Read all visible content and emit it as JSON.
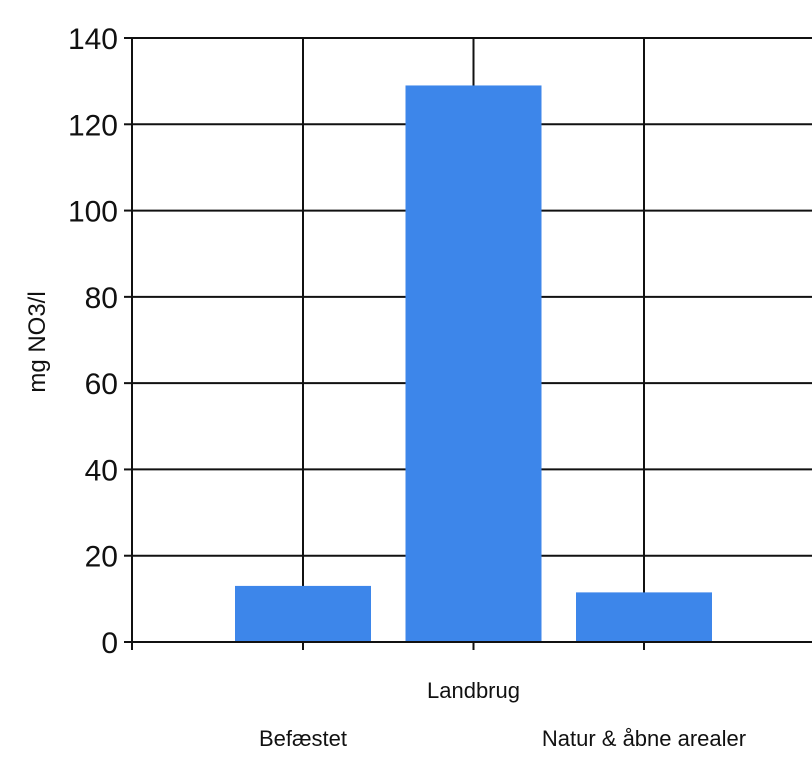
{
  "chart_data": {
    "type": "bar",
    "title": "",
    "xlabel": "",
    "ylabel": "mg NO3/l",
    "categories": [
      "Befæstet",
      "Landbrug",
      "Natur & åbne arealer"
    ],
    "series": [
      {
        "values": [
          13,
          129,
          11.5
        ]
      }
    ],
    "ylim": [
      0,
      140
    ],
    "yticks": [
      0,
      20,
      40,
      60,
      80,
      100,
      120,
      140
    ],
    "grid": true,
    "legend": "none",
    "bar_color": "#3d86ea",
    "grid_color": "#111111"
  }
}
